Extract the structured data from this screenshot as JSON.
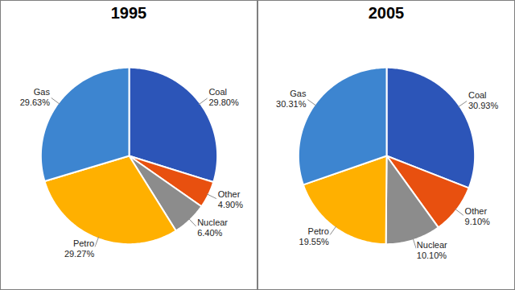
{
  "chart_data": [
    {
      "type": "pie",
      "title": "1995",
      "categories": [
        "Coal",
        "Other",
        "Nuclear",
        "Petro",
        "Gas"
      ],
      "values": [
        29.8,
        4.9,
        6.4,
        29.27,
        29.63
      ],
      "value_labels": [
        "29.80%",
        "4.90%",
        "6.40%",
        "29.27%",
        "29.63%"
      ],
      "colors": [
        "#2c55b8",
        "#e8500f",
        "#8c8c8c",
        "#ffb000",
        "#3d85d0"
      ],
      "data_labels": true
    },
    {
      "type": "pie",
      "title": "2005",
      "categories": [
        "Coal",
        "Other",
        "Nuclear",
        "Petro",
        "Gas"
      ],
      "values": [
        30.93,
        9.1,
        10.1,
        19.55,
        30.31
      ],
      "value_labels": [
        "30.93%",
        "9.10%",
        "10.10%",
        "19.55%",
        "30.31%"
      ],
      "colors": [
        "#2c55b8",
        "#e8500f",
        "#8c8c8c",
        "#ffb000",
        "#3d85d0"
      ],
      "data_labels": true
    }
  ]
}
